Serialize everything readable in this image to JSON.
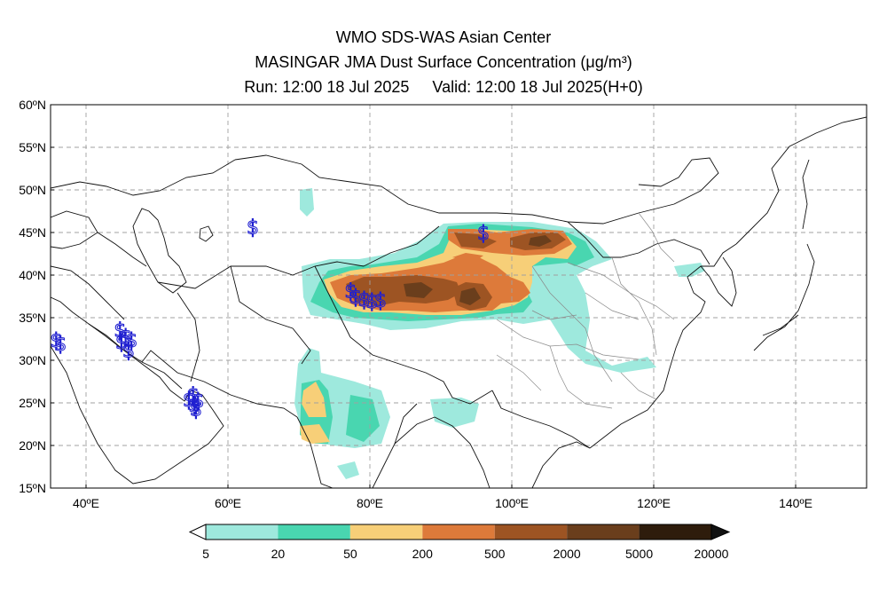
{
  "header": {
    "line1": "WMO SDS-WAS Asian Center",
    "line2": "MASINGAR JMA Dust Surface Concentration (μg/m³)",
    "run": "Run: 12:00 18 Jul 2025",
    "valid": "Valid: 12:00 18 Jul 2025(H+0)"
  },
  "axes": {
    "lat_labels": [
      "60ºN",
      "55ºN",
      "50ºN",
      "45ºN",
      "40ºN",
      "35ºN",
      "30ºN",
      "25ºN",
      "20ºN",
      "15ºN"
    ],
    "lat_values": [
      60,
      55,
      50,
      45,
      40,
      35,
      30,
      25,
      20,
      15
    ],
    "lon_labels": [
      "40ºE",
      "60ºE",
      "80ºE",
      "100ºE",
      "120ºE",
      "140ºE"
    ],
    "lon_values": [
      40,
      60,
      80,
      100,
      120,
      140
    ],
    "lon_range": [
      35,
      150
    ],
    "lat_range": [
      15,
      60
    ],
    "grid": true
  },
  "colorbar": {
    "colors": [
      "#9ee9dd",
      "#49d6b0",
      "#f7cf78",
      "#dd7a3a",
      "#9d5423",
      "#6a3e1c",
      "#2e1c0c"
    ],
    "labels": [
      "5",
      "20",
      "50",
      "200",
      "500",
      "2000",
      "5000",
      "20000"
    ]
  },
  "dust_symbol": "$",
  "dust_reports": [
    {
      "lon": 63.5,
      "lat": 45.7
    },
    {
      "lon": 96.0,
      "lat": 45.0
    },
    {
      "lon": 77.3,
      "lat": 38.2
    },
    {
      "lon": 78.0,
      "lat": 37.5
    },
    {
      "lon": 79.2,
      "lat": 37.2
    },
    {
      "lon": 80.3,
      "lat": 37.0
    },
    {
      "lon": 81.5,
      "lat": 37.1
    },
    {
      "lon": 35.8,
      "lat": 32.4
    },
    {
      "lon": 36.4,
      "lat": 32.0
    },
    {
      "lon": 44.8,
      "lat": 33.6
    },
    {
      "lon": 45.6,
      "lat": 32.8
    },
    {
      "lon": 46.4,
      "lat": 32.4
    },
    {
      "lon": 45.0,
      "lat": 32.2
    },
    {
      "lon": 46.0,
      "lat": 31.2
    },
    {
      "lon": 54.5,
      "lat": 25.4
    },
    {
      "lon": 55.3,
      "lat": 24.8
    },
    {
      "lon": 55.8,
      "lat": 25.3
    },
    {
      "lon": 55.1,
      "lat": 26.0
    },
    {
      "lon": 55.5,
      "lat": 24.3
    }
  ]
}
